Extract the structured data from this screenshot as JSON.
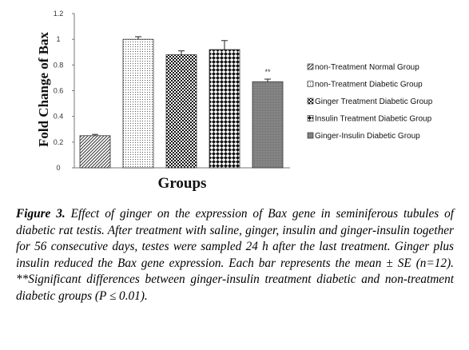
{
  "chart_data": {
    "type": "bar",
    "ylabel": "Fold Change of Bax",
    "xlabel": "Groups",
    "ylim": [
      0,
      1.2
    ],
    "yticks": [
      "0",
      "0.2",
      "0.4",
      "0.6",
      "0.8",
      "1",
      "1.2"
    ],
    "yticks_values": [
      0,
      0.2,
      0.4,
      0.6,
      0.8,
      1.0,
      1.2
    ],
    "series": [
      {
        "name": "non-Treatment Normal Group",
        "value": 0.25,
        "error": 0.01,
        "pattern": "diagonal"
      },
      {
        "name": "non-Treatment Diabetic Group",
        "value": 1.0,
        "error": 0.02,
        "pattern": "dots"
      },
      {
        "name": "Ginger Treatment Diabetic Group",
        "value": 0.88,
        "error": 0.03,
        "pattern": "checker"
      },
      {
        "name": "Insulin Treatment Diabetic Group",
        "value": 0.92,
        "error": 0.07,
        "pattern": "diamonds"
      },
      {
        "name": "Ginger-Insulin Diabetic Group",
        "value": 0.67,
        "error": 0.02,
        "pattern": "gray"
      }
    ],
    "annotations": [
      {
        "series_index": 4,
        "text": "**"
      }
    ],
    "legend_position": "right",
    "grid": false
  },
  "caption": {
    "label": "Figure 3.",
    "text": " Effect of ginger on the expression of Bax gene in seminiferous tubules of diabetic rat testis. After treatment with saline, ginger, insulin and ginger-insulin together for 56 consecutive days, testes were sampled 24 h after the last treatment. Ginger plus insulin reduced the Bax gene expression. Each bar represents the mean ± SE (n=12). **Significant differences between ginger-insulin treatment diabetic and non-treatment diabetic groups (P ≤ 0.01)."
  }
}
